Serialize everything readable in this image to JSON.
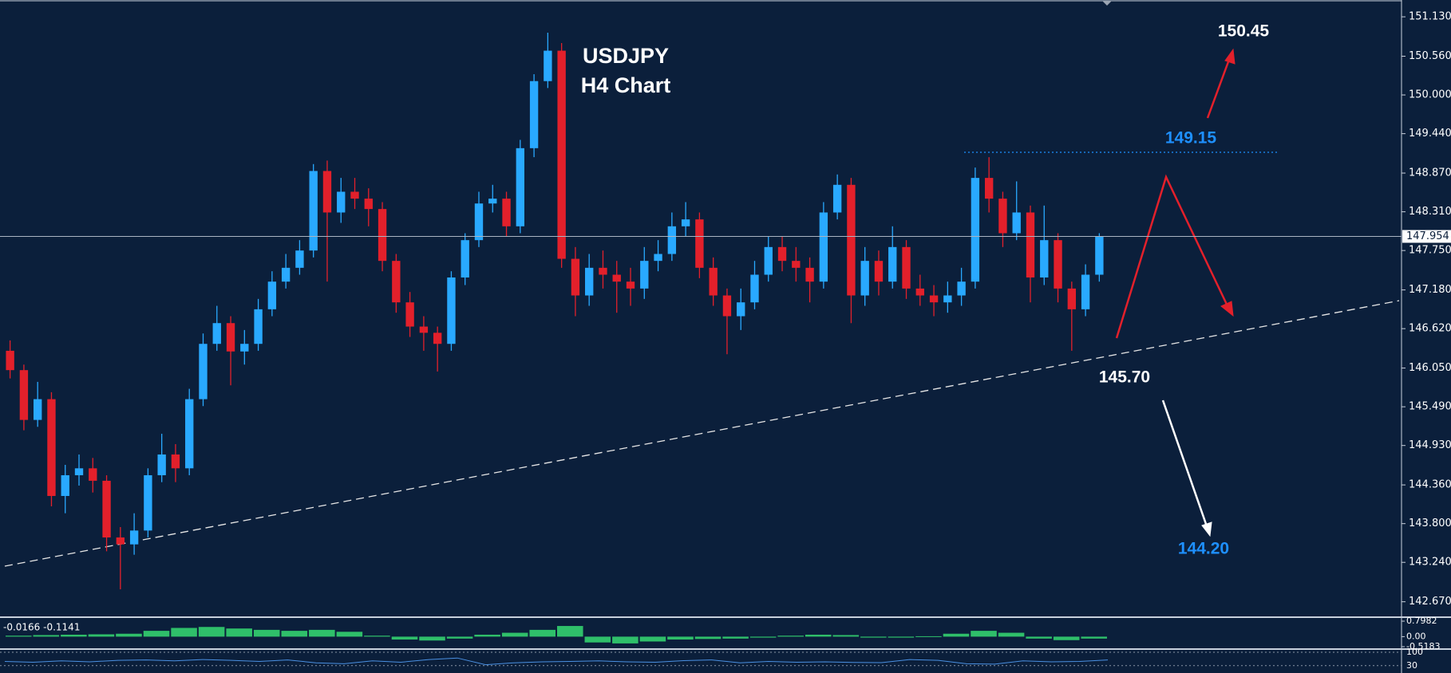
{
  "chart_data": {
    "type": "candlestick",
    "title": "USDJPY",
    "subtitle": "H4 Chart",
    "up_color": "#29a9ff",
    "down_color": "#e3202b",
    "open": [
      146.3,
      146.02,
      145.3,
      145.6,
      144.2,
      144.5,
      144.6,
      144.42,
      143.6,
      143.5,
      143.7,
      144.5,
      144.8,
      144.6,
      145.6,
      146.4,
      146.7,
      146.29,
      146.4,
      146.9,
      147.3,
      147.5,
      147.75,
      148.9,
      148.3,
      148.6,
      148.5,
      148.35,
      147.6,
      147.0,
      146.65,
      146.56,
      146.4,
      147.36,
      147.9,
      148.43,
      148.5,
      148.1,
      149.23,
      150.2,
      150.64,
      147.63,
      147.1,
      147.5,
      147.4,
      147.3,
      147.2,
      147.6,
      147.7,
      148.1,
      148.2,
      147.5,
      147.1,
      146.8,
      147.0,
      147.4,
      147.8,
      147.6,
      147.5,
      147.3,
      148.3,
      148.7,
      147.1,
      147.6,
      147.3,
      147.8,
      147.2,
      147.1,
      147.0,
      147.1,
      147.3,
      148.8,
      148.5,
      148.0,
      148.3,
      147.36,
      147.9,
      147.2,
      146.9,
      147.4
    ],
    "high": [
      146.45,
      146.1,
      145.85,
      145.7,
      144.65,
      144.8,
      144.75,
      144.5,
      143.75,
      143.95,
      144.6,
      145.1,
      144.95,
      145.75,
      146.55,
      146.95,
      146.8,
      146.6,
      147.05,
      147.45,
      147.7,
      147.9,
      149.0,
      149.05,
      148.8,
      148.8,
      148.65,
      148.45,
      147.7,
      147.15,
      146.8,
      146.65,
      147.45,
      148.0,
      148.6,
      148.7,
      148.6,
      149.35,
      150.3,
      150.9,
      150.75,
      147.8,
      147.7,
      147.75,
      147.6,
      147.5,
      147.8,
      147.9,
      148.3,
      148.45,
      148.3,
      147.65,
      147.2,
      147.2,
      147.6,
      147.95,
      147.95,
      147.8,
      147.65,
      148.45,
      148.85,
      148.8,
      147.8,
      147.75,
      148.1,
      147.9,
      147.4,
      147.25,
      147.3,
      147.5,
      148.95,
      149.1,
      148.6,
      148.75,
      148.4,
      148.4,
      148.0,
      147.3,
      147.55,
      148.0
    ],
    "low": [
      145.9,
      145.15,
      145.2,
      144.05,
      143.95,
      144.35,
      144.25,
      143.4,
      142.85,
      143.35,
      143.6,
      144.4,
      144.4,
      144.5,
      145.5,
      146.3,
      145.8,
      146.1,
      146.3,
      146.8,
      147.2,
      147.4,
      147.65,
      147.3,
      148.15,
      148.35,
      148.1,
      147.45,
      146.85,
      146.5,
      146.3,
      146.0,
      146.3,
      147.25,
      147.8,
      148.3,
      147.95,
      148.0,
      149.1,
      150.1,
      147.5,
      146.8,
      146.95,
      147.2,
      146.85,
      146.95,
      147.05,
      147.45,
      147.6,
      147.95,
      147.35,
      146.95,
      146.25,
      146.6,
      146.9,
      147.3,
      147.45,
      147.3,
      147.0,
      147.2,
      148.2,
      146.7,
      146.95,
      147.1,
      147.2,
      147.05,
      146.95,
      146.8,
      146.85,
      146.95,
      147.2,
      148.3,
      147.8,
      147.9,
      147.0,
      147.25,
      147.0,
      146.3,
      146.8,
      147.3
    ],
    "close": [
      146.02,
      145.3,
      145.6,
      144.2,
      144.5,
      144.6,
      144.42,
      143.6,
      143.5,
      143.7,
      144.5,
      144.8,
      144.6,
      145.6,
      146.4,
      146.7,
      146.29,
      146.4,
      146.9,
      147.3,
      147.5,
      147.75,
      148.9,
      148.3,
      148.6,
      148.5,
      148.35,
      147.6,
      147.0,
      146.65,
      146.56,
      146.4,
      147.36,
      147.9,
      148.43,
      148.5,
      148.1,
      149.23,
      150.2,
      150.64,
      147.63,
      147.1,
      147.5,
      147.4,
      147.3,
      147.2,
      147.6,
      147.7,
      148.1,
      148.2,
      147.5,
      147.1,
      146.8,
      147.0,
      147.4,
      147.8,
      147.6,
      147.5,
      147.3,
      148.3,
      148.7,
      147.1,
      147.6,
      147.3,
      147.8,
      147.2,
      147.1,
      147.0,
      147.1,
      147.3,
      148.8,
      148.5,
      148.0,
      148.3,
      147.36,
      147.9,
      147.2,
      146.9,
      147.4,
      147.954
    ],
    "current_price": 147.954,
    "ylim": [
      142.47,
      151.35
    ],
    "yticks": [
      {
        "value": 151.13,
        "label": "151.130"
      },
      {
        "value": 150.56,
        "label": "150.560"
      },
      {
        "value": 150.0,
        "label": "150.000"
      },
      {
        "value": 149.44,
        "label": "149.440"
      },
      {
        "value": 148.87,
        "label": "148.870"
      },
      {
        "value": 148.31,
        "label": "148.310"
      },
      {
        "value": 147.75,
        "label": "147.750"
      },
      {
        "value": 147.18,
        "label": "147.180"
      },
      {
        "value": 146.62,
        "label": "146.620"
      },
      {
        "value": 146.05,
        "label": "146.050"
      },
      {
        "value": 145.49,
        "label": "145.490"
      },
      {
        "value": 144.93,
        "label": "144.930"
      },
      {
        "value": 144.36,
        "label": "144.360"
      },
      {
        "value": 143.8,
        "label": "143.800"
      },
      {
        "value": 143.24,
        "label": "143.240"
      },
      {
        "value": 142.67,
        "label": "142.670"
      }
    ],
    "annotations": [
      "150.45",
      "149.15",
      "145.70",
      "144.20"
    ],
    "macd": {
      "label": "-0.0166 -0.1141",
      "color": "#2fbf6a",
      "values": [
        0.05,
        0.08,
        0.1,
        0.12,
        0.15,
        0.3,
        0.45,
        0.5,
        0.42,
        0.35,
        0.3,
        0.35,
        0.25,
        0.05,
        -0.15,
        -0.2,
        -0.1,
        0.1,
        0.2,
        0.35,
        0.55,
        -0.3,
        -0.35,
        -0.25,
        -0.15,
        -0.12,
        -0.1,
        -0.05,
        0.05,
        0.1,
        0.08,
        -0.05,
        -0.05,
        0.02,
        0.15,
        0.3,
        0.2,
        -0.1,
        -0.18,
        -0.1
      ],
      "ylim": [
        -0.5183,
        0.7982
      ],
      "yticks": [
        0.7982,
        {
          "value": 0,
          "label": "0.00"
        },
        -0.5183
      ]
    },
    "rsi": {
      "color": "#4a90e2",
      "values": [
        52,
        48,
        55,
        50,
        58,
        60,
        55,
        62,
        58,
        52,
        60,
        45,
        40,
        55,
        48,
        62,
        70,
        35,
        45,
        50,
        52,
        55,
        50,
        48,
        56,
        60,
        45,
        52,
        48,
        50,
        47,
        46,
        62,
        58,
        40,
        38,
        55,
        50,
        52,
        60
      ],
      "ylim": [
        0,
        100
      ],
      "yticks": [
        30,
        100
      ]
    }
  }
}
